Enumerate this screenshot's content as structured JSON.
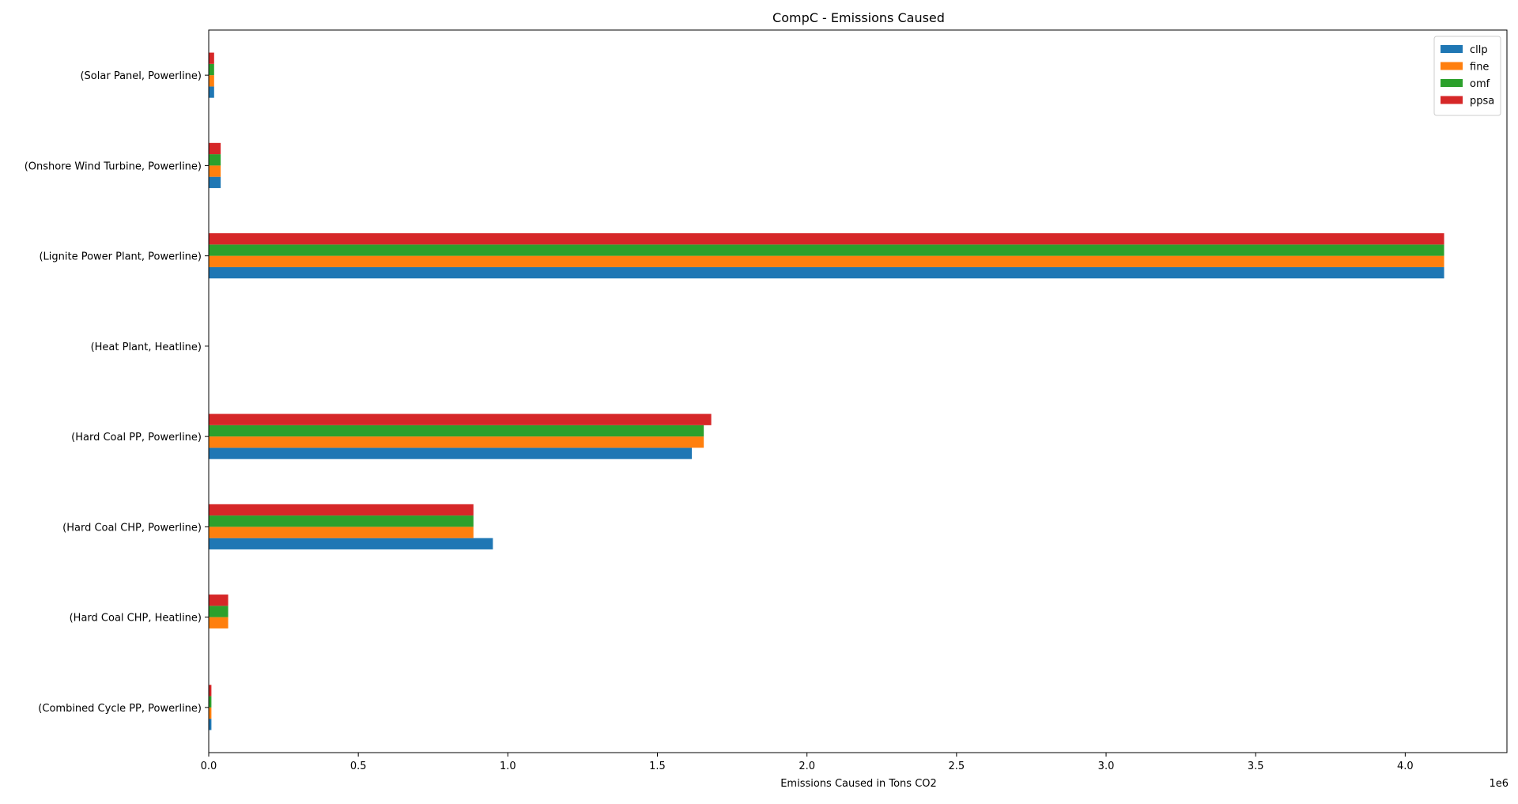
{
  "chart_data": {
    "type": "bar",
    "orientation": "horizontal",
    "title": "CompC - Emissions Caused",
    "xlabel": "Emissions Caused in Tons CO2",
    "ylabel": "",
    "x_scale_label": "1e6",
    "xlim": [
      0,
      4.34
    ],
    "x_ticks": [
      0.0,
      0.5,
      1.0,
      1.5,
      2.0,
      2.5,
      3.0,
      3.5,
      4.0
    ],
    "x_tick_labels": [
      "0.0",
      "0.5",
      "1.0",
      "1.5",
      "2.0",
      "2.5",
      "3.0",
      "3.5",
      "4.0"
    ],
    "grid": false,
    "legend_position": "top-right",
    "categories": [
      "(Combined Cycle PP, Powerline)",
      "(Hard Coal CHP, Heatline)",
      "(Hard Coal CHP, Powerline)",
      "(Hard Coal PP, Powerline)",
      "(Heat Plant, Heatline)",
      "(Lignite Power Plant, Powerline)",
      "(Onshore Wind Turbine, Powerline)",
      "(Solar Panel, Powerline)"
    ],
    "series": [
      {
        "name": "cllp",
        "color": "#1f77b4",
        "values": [
          0.009,
          0.0,
          0.95,
          1.615,
          0.0,
          4.13,
          0.04,
          0.018
        ]
      },
      {
        "name": "fine",
        "color": "#ff7f0e",
        "values": [
          0.009,
          0.065,
          0.885,
          1.655,
          0.0,
          4.13,
          0.04,
          0.018
        ]
      },
      {
        "name": "omf",
        "color": "#2ca02c",
        "values": [
          0.009,
          0.065,
          0.885,
          1.655,
          0.0,
          4.13,
          0.04,
          0.018
        ]
      },
      {
        "name": "ppsa",
        "color": "#d62728",
        "values": [
          0.009,
          0.065,
          0.885,
          1.68,
          0.0,
          4.13,
          0.04,
          0.018
        ]
      }
    ]
  }
}
